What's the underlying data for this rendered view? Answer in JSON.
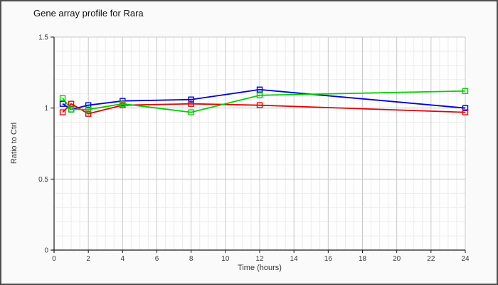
{
  "window": {
    "background": "#fafafa",
    "border_color": "#4f4f4f"
  },
  "chart": {
    "title": "Gene array profile for Rara",
    "ylabel": "Ratio to Ctrl",
    "xlabel": "Time (hours)"
  },
  "chart_data": {
    "type": "line",
    "title": "Gene array profile for Rara",
    "xlabel": "Time (hours)",
    "ylabel": "Ratio to Ctrl",
    "x": [
      0.5,
      1,
      2,
      4,
      8,
      12,
      24
    ],
    "series": [
      {
        "name": "blue",
        "color": "#0000e0",
        "values": [
          1.03,
          0.99,
          1.02,
          1.05,
          1.06,
          1.13,
          1.0
        ]
      },
      {
        "name": "red",
        "color": "#e80000",
        "values": [
          0.97,
          1.03,
          0.96,
          1.02,
          1.03,
          1.02,
          0.97
        ]
      },
      {
        "name": "green",
        "color": "#00cf00",
        "values": [
          1.07,
          0.99,
          0.99,
          1.03,
          0.97,
          1.09,
          1.12
        ]
      }
    ],
    "xlim": [
      0,
      24
    ],
    "ylim": [
      0,
      1.5
    ],
    "x_ticks": [
      0,
      2,
      4,
      6,
      8,
      10,
      12,
      14,
      16,
      18,
      20,
      22,
      24
    ],
    "y_ticks": [
      0,
      0.5,
      1,
      1.5
    ],
    "x_minor_step": 0.5,
    "y_minor_step": 0.1,
    "grid": true,
    "legend": false,
    "marker": "square",
    "colors": {
      "grid_minor": "#ebebeb",
      "grid_major": "#c9c9c9",
      "axis": "#1a1a1a",
      "tick_label": "#3d3d3d"
    }
  }
}
